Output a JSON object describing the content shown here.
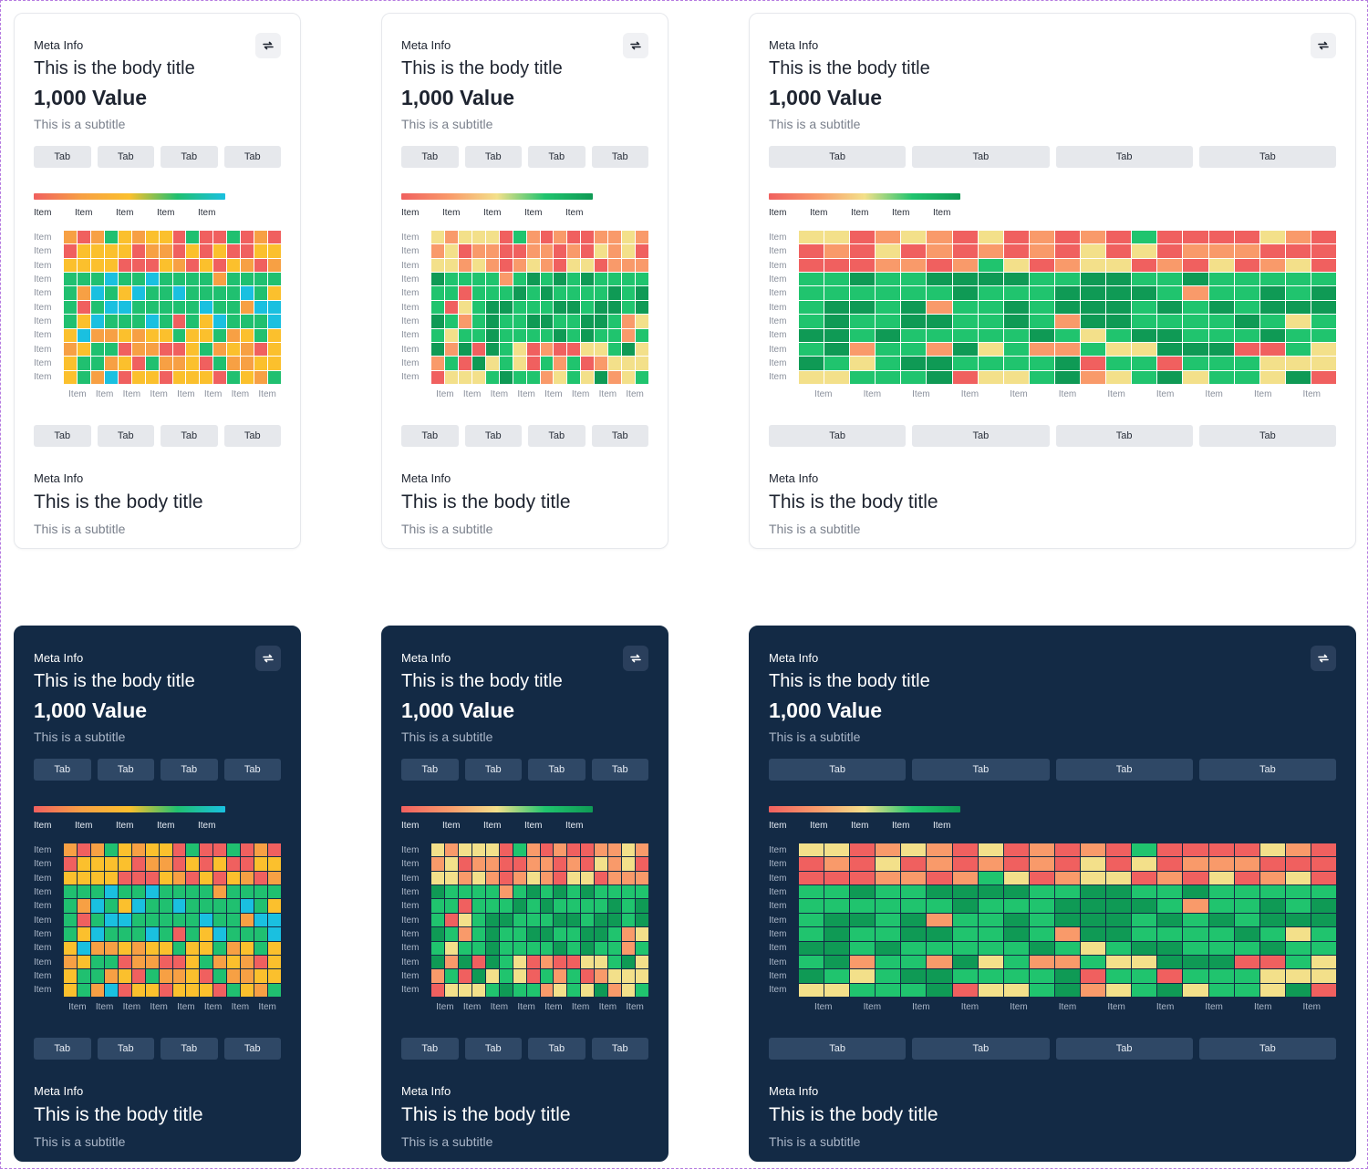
{
  "card": {
    "meta": "Meta Info",
    "title": "This is the body title",
    "value": "1,000 Value",
    "subtitle": "This is a subtitle",
    "tab_label": "Tab",
    "item_label": "Item"
  },
  "colors": {
    "light_bg": "#ffffff",
    "dark_bg": "#132a45",
    "scale_a": [
      "#f0605f",
      "#f7a044",
      "#fbc02d",
      "#20c070",
      "#1ac0e0"
    ],
    "scale_b": [
      "#f0605f",
      "#f99a6a",
      "#f3e08a",
      "#20c46e",
      "#0f9a55"
    ]
  },
  "icons": {
    "refresh": "refresh-icon"
  },
  "cards": [
    {
      "id": "light-narrow-a",
      "theme": "light",
      "variant": "a",
      "cols": 16
    },
    {
      "id": "light-narrow-b",
      "theme": "light",
      "variant": "b",
      "cols": 16
    },
    {
      "id": "light-wide-b",
      "theme": "light",
      "variant": "b",
      "cols": 21
    },
    {
      "id": "dark-narrow-a",
      "theme": "dark",
      "variant": "a",
      "cols": 16
    },
    {
      "id": "dark-narrow-b",
      "theme": "dark",
      "variant": "b",
      "cols": 16
    },
    {
      "id": "dark-wide-b",
      "theme": "dark",
      "variant": "b",
      "cols": 21
    }
  ],
  "heatmap": {
    "rows": 11,
    "row_labels": [
      "Item",
      "Item",
      "Item",
      "Item",
      "Item",
      "Item",
      "Item",
      "Item",
      "Item",
      "Item",
      "Item"
    ],
    "x_labels_narrow": [
      "Item",
      "Item",
      "Item",
      "Item",
      "Item",
      "Item",
      "Item",
      "Item"
    ],
    "x_labels_wide": [
      "Item",
      "Item",
      "Item",
      "Item",
      "Item",
      "Item",
      "Item",
      "Item",
      "Item",
      "Item",
      "Item"
    ],
    "legend_labels": [
      "Item",
      "Item",
      "Item",
      "Item",
      "Item"
    ]
  }
}
